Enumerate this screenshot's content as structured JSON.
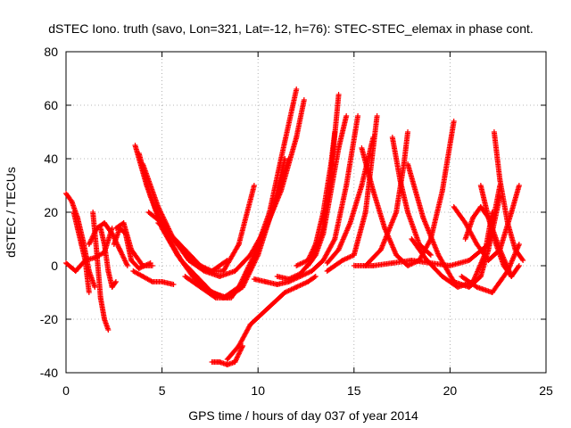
{
  "chart_data": {
    "type": "scatter",
    "title": "dSTEC Iono. truth (savo, Lon=321, Lat=-12, h=76): STEC-STEC_elemax in phase cont.",
    "xlabel": "GPS time / hours of day 037 of year 2014",
    "ylabel": "dSTEC  / TECUs",
    "xlim": [
      0,
      25
    ],
    "ylim": [
      -40,
      80
    ],
    "xticks": [
      0,
      5,
      10,
      15,
      20,
      25
    ],
    "yticks": [
      -40,
      -20,
      0,
      20,
      40,
      60,
      80
    ],
    "grid": true,
    "marker": "+",
    "series_color": "#ff0000",
    "series": [
      {
        "x": [
          0.0,
          0.3,
          0.6,
          0.9,
          1.2,
          1.5
        ],
        "y": [
          27,
          24,
          18,
          9,
          -2,
          -8
        ]
      },
      {
        "x": [
          0.0,
          0.5,
          1.0,
          1.5,
          2.0,
          2.4
        ],
        "y": [
          1,
          -2,
          2,
          3,
          5,
          14
        ]
      },
      {
        "x": [
          0.4,
          0.6,
          0.8,
          1.0,
          1.2
        ],
        "y": [
          20,
          14,
          8,
          2,
          -10
        ]
      },
      {
        "x": [
          1.4,
          1.6,
          1.8,
          2.0,
          2.2
        ],
        "y": [
          20,
          5,
          -12,
          -20,
          -24
        ]
      },
      {
        "x": [
          1.2,
          1.6,
          2.0,
          2.4,
          2.8,
          3.2
        ],
        "y": [
          8,
          14,
          16,
          12,
          6,
          0
        ]
      },
      {
        "x": [
          1.8,
          2.0,
          2.2,
          2.4,
          2.6
        ],
        "y": [
          14,
          8,
          -2,
          -8,
          -6
        ]
      },
      {
        "x": [
          2.5,
          2.8,
          3.1,
          3.4,
          3.8,
          4.4
        ],
        "y": [
          8,
          14,
          12,
          2,
          -1,
          1
        ]
      },
      {
        "x": [
          2.6,
          3.0,
          3.4,
          4.0,
          4.5
        ],
        "y": [
          14,
          16,
          6,
          0,
          0
        ]
      },
      {
        "x": [
          3.6,
          4.2,
          5.0,
          5.8,
          6.6,
          7.4,
          8.2,
          9.0,
          9.8,
          10.6,
          11.2,
          12.0
        ],
        "y": [
          45,
          30,
          14,
          4,
          -4,
          -9,
          -12,
          -8,
          4,
          20,
          40,
          66
        ]
      },
      {
        "x": [
          3.8,
          4.4,
          5.2,
          6.0,
          6.8,
          7.6,
          8.4,
          9.2,
          10.0,
          10.8,
          11.4
        ],
        "y": [
          42,
          26,
          12,
          2,
          -4,
          -10,
          -12,
          -8,
          4,
          22,
          40
        ]
      },
      {
        "x": [
          4.0,
          4.8,
          5.6,
          6.4,
          7.2,
          8.0,
          8.8,
          9.6,
          10.4,
          11.2,
          12.0,
          12.4
        ],
        "y": [
          38,
          22,
          10,
          2,
          -2,
          -4,
          -2,
          4,
          14,
          28,
          48,
          62
        ]
      },
      {
        "x": [
          4.3,
          5.0,
          5.8,
          6.6,
          7.4,
          8.2,
          9.0,
          9.8
        ],
        "y": [
          20,
          16,
          8,
          2,
          -2,
          -2,
          8,
          30
        ]
      },
      {
        "x": [
          4.8,
          5.4,
          6.2,
          7.0,
          7.6,
          8.4
        ],
        "y": [
          16,
          12,
          6,
          0,
          -2,
          2
        ]
      },
      {
        "x": [
          3.5,
          4.0,
          4.5,
          5.0,
          5.6
        ],
        "y": [
          -2,
          -4,
          -6,
          -6,
          -7
        ]
      },
      {
        "x": [
          6.2,
          7.0,
          7.8,
          8.6,
          9.4,
          10.2,
          11.0,
          11.6
        ],
        "y": [
          -4,
          -8,
          -12,
          -12,
          -4,
          10,
          26,
          40
        ]
      },
      {
        "x": [
          7.6,
          8.0,
          8.4,
          8.8,
          9.2
        ],
        "y": [
          -36,
          -36,
          -37,
          -36,
          -30
        ]
      },
      {
        "x": [
          8.4,
          9.0,
          9.6,
          10.2,
          10.8,
          11.4,
          12.0,
          12.6,
          13.0
        ],
        "y": [
          -35,
          -30,
          -22,
          -18,
          -14,
          -10,
          -8,
          -6,
          -4
        ]
      },
      {
        "x": [
          9.8,
          10.4,
          11.0,
          11.6,
          12.2,
          12.8,
          13.4,
          14.0,
          14.6,
          15.2
        ],
        "y": [
          -5,
          -6,
          -7,
          -6,
          -4,
          -2,
          2,
          10,
          30,
          56
        ]
      },
      {
        "x": [
          11.0,
          11.6,
          12.2,
          12.8,
          13.4,
          13.8,
          14.2
        ],
        "y": [
          -4,
          -5,
          -3,
          2,
          14,
          34,
          64
        ]
      },
      {
        "x": [
          12.0,
          12.6,
          13.0,
          13.4,
          13.8,
          14.0
        ],
        "y": [
          0,
          2,
          8,
          20,
          38,
          50
        ]
      },
      {
        "x": [
          12.6,
          13.0,
          13.4,
          13.8,
          14.2,
          14.6
        ],
        "y": [
          0,
          4,
          12,
          28,
          44,
          56
        ]
      },
      {
        "x": [
          13.6,
          14.0,
          14.4,
          15.0,
          15.6,
          16.2
        ],
        "y": [
          -2,
          0,
          2,
          4,
          20,
          56
        ]
      },
      {
        "x": [
          13.6,
          14.2,
          14.8,
          15.4,
          16.0
        ],
        "y": [
          1,
          6,
          16,
          30,
          48
        ]
      },
      {
        "x": [
          15.4,
          16.0,
          16.6,
          17.2,
          17.8,
          18.4,
          19.0,
          19.6,
          20.2
        ],
        "y": [
          44,
          28,
          14,
          4,
          0,
          2,
          10,
          28,
          54
        ]
      },
      {
        "x": [
          17.0,
          17.4,
          17.8,
          18.4,
          19.0
        ],
        "y": [
          48,
          32,
          20,
          8,
          4
        ]
      },
      {
        "x": [
          15.6,
          16.4,
          17.2,
          17.6,
          17.8
        ],
        "y": [
          0,
          6,
          20,
          38,
          50
        ]
      },
      {
        "x": [
          15.0,
          16.0,
          17.0,
          18.0,
          19.0,
          20.0,
          21.0,
          22.0,
          22.6
        ],
        "y": [
          0,
          0,
          1,
          2,
          1,
          0,
          2,
          8,
          30
        ]
      },
      {
        "x": [
          17.8,
          18.6,
          19.4,
          20.2,
          21.0,
          21.6,
          22.0,
          22.6
        ],
        "y": [
          38,
          18,
          4,
          -6,
          -8,
          -4,
          6,
          26
        ]
      },
      {
        "x": [
          18.0,
          18.8,
          19.6,
          20.4,
          21.2,
          21.8,
          22.2
        ],
        "y": [
          10,
          2,
          -4,
          -8,
          -6,
          4,
          20
        ]
      },
      {
        "x": [
          20.2,
          20.8,
          21.4,
          22.0,
          22.6,
          23.2,
          23.6
        ],
        "y": [
          22,
          16,
          8,
          2,
          6,
          20,
          30
        ]
      },
      {
        "x": [
          20.8,
          21.2,
          21.6,
          22.0,
          22.6,
          23.2
        ],
        "y": [
          10,
          18,
          22,
          18,
          6,
          -4
        ]
      },
      {
        "x": [
          21.6,
          22.0,
          22.4,
          22.8,
          23.2,
          23.6
        ],
        "y": [
          30,
          18,
          8,
          0,
          -4,
          0
        ]
      },
      {
        "x": [
          22.3,
          22.6,
          23.0,
          23.4,
          23.8
        ],
        "y": [
          50,
          32,
          16,
          6,
          2
        ]
      },
      {
        "x": [
          20.6,
          21.4,
          22.2,
          23.0,
          23.6
        ],
        "y": [
          -4,
          -8,
          -10,
          -2,
          8
        ]
      }
    ]
  }
}
